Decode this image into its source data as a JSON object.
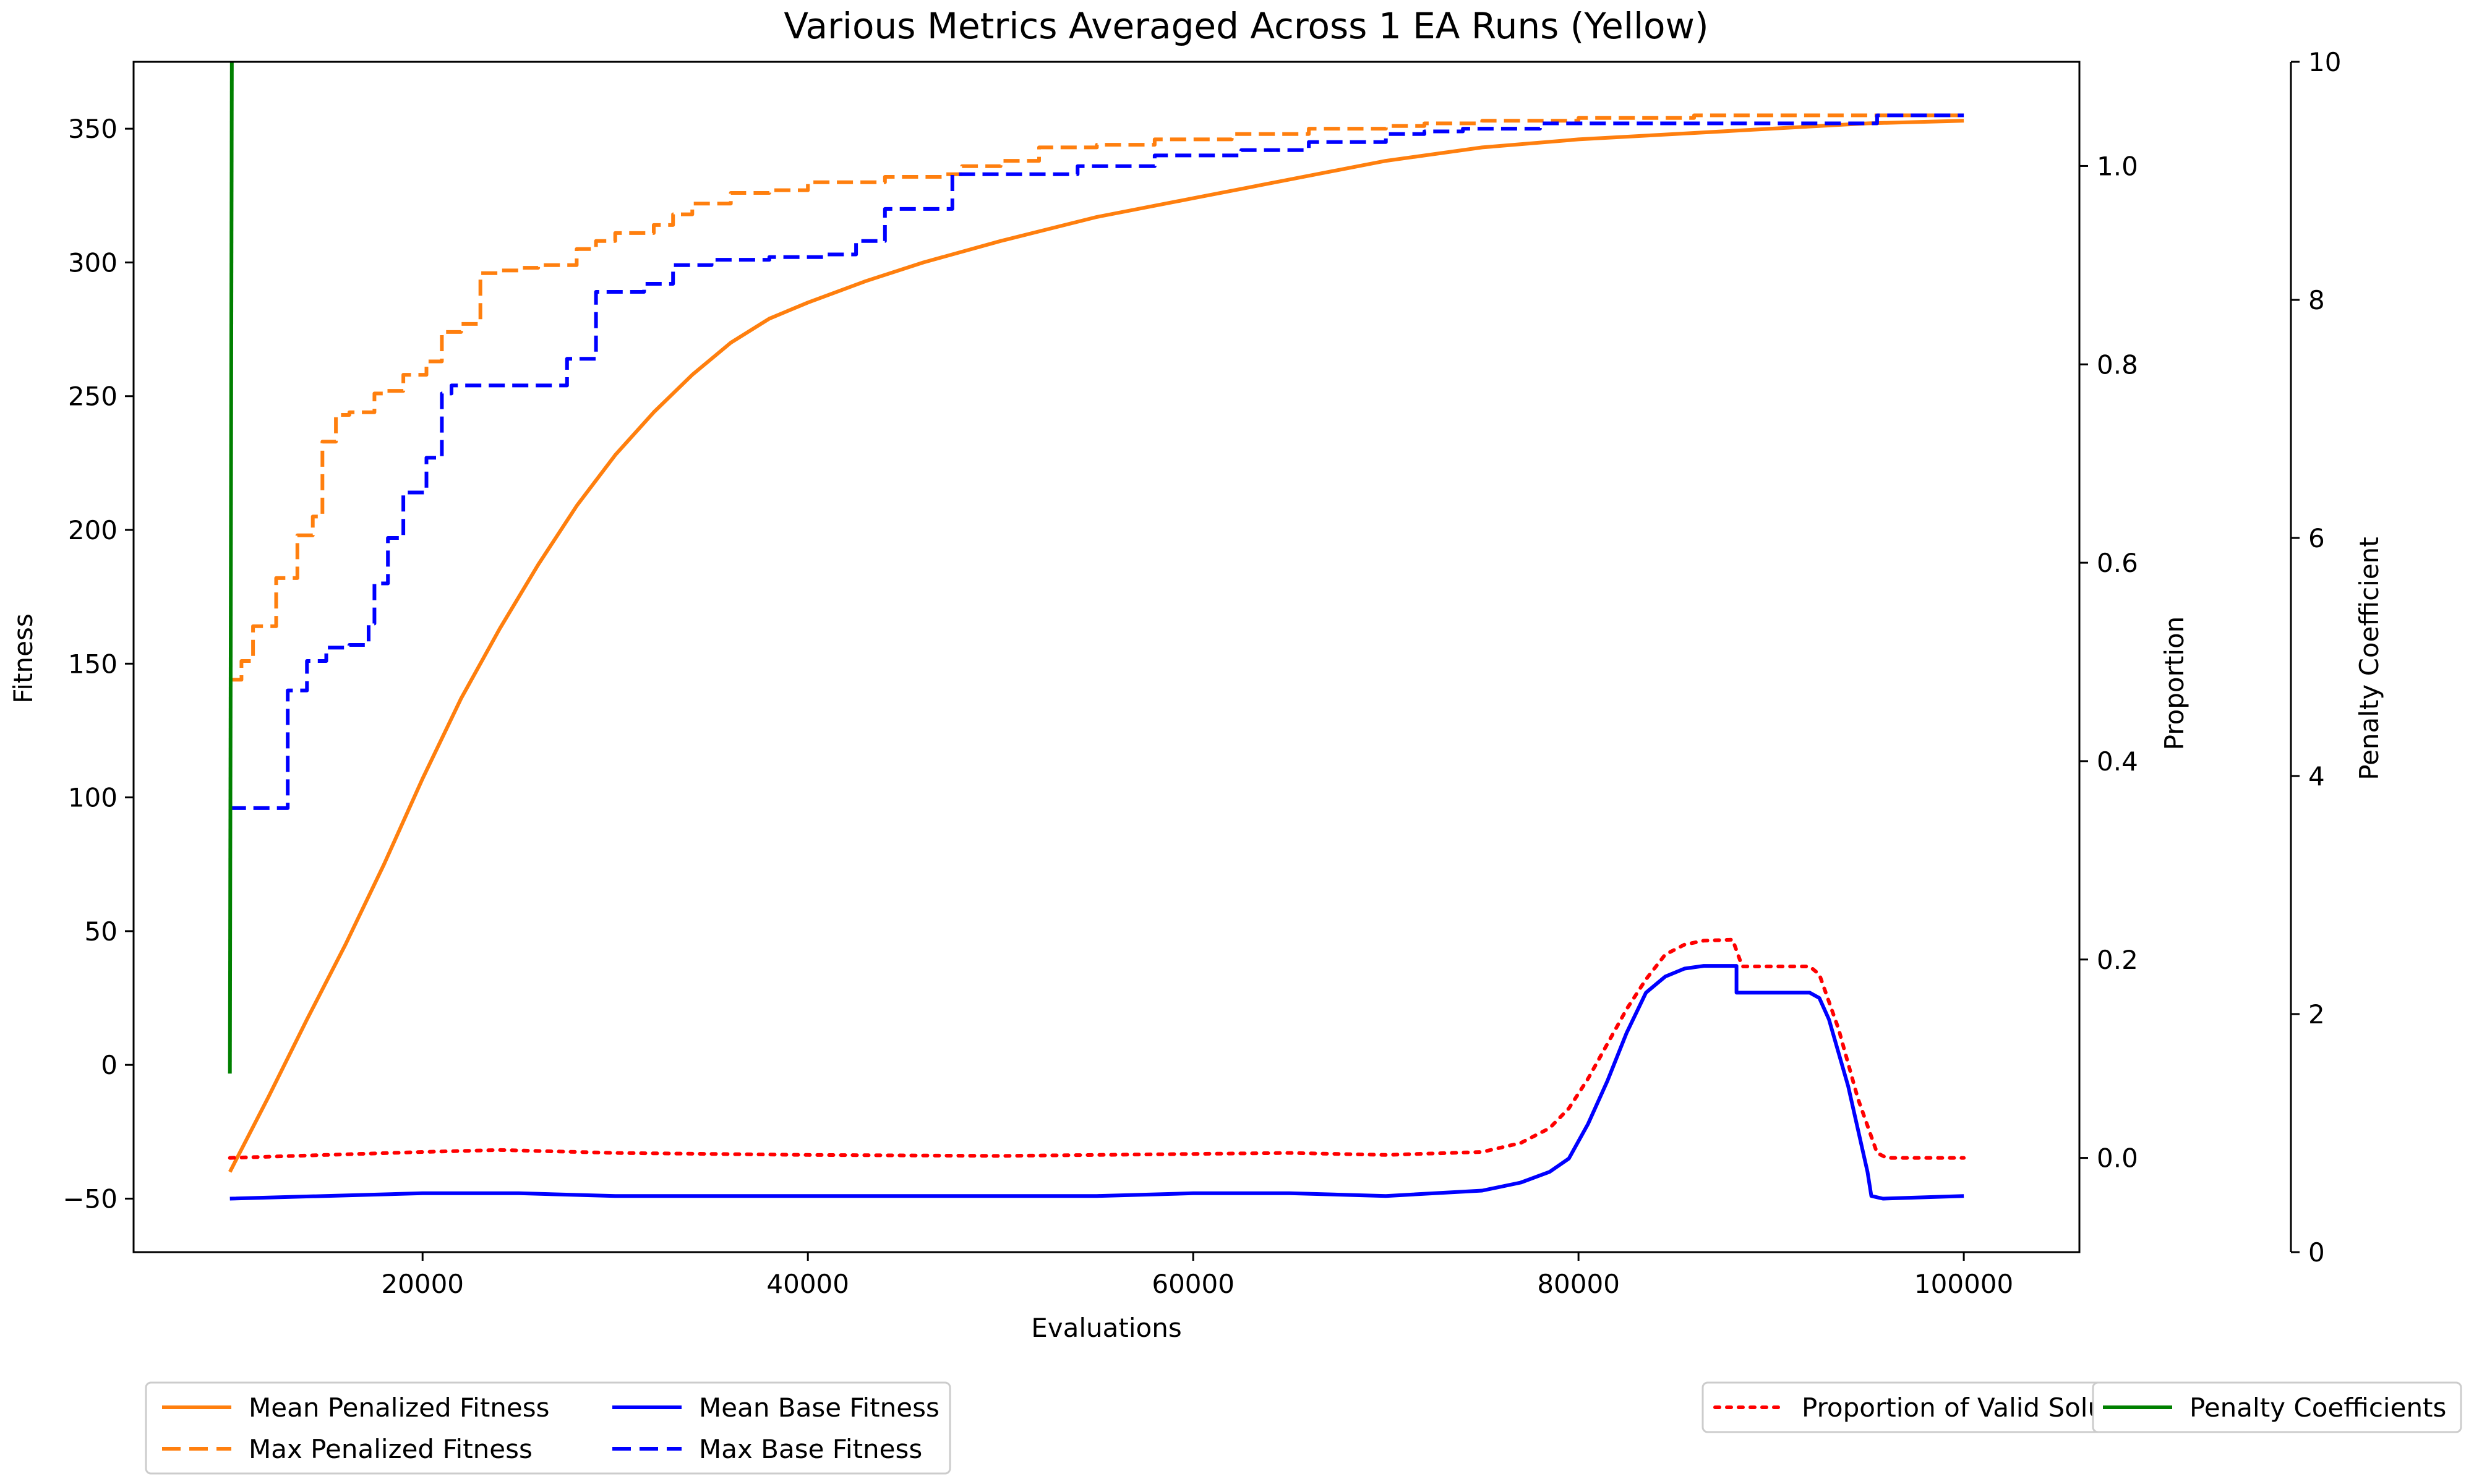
{
  "title": "Various Metrics Averaged Across 1 EA Runs (Yellow)",
  "colors": {
    "orange": "#ff7f0e",
    "blue": "#0000ff",
    "red": "#ff0000",
    "green": "#008000",
    "axis": "#000000"
  },
  "chart_data": {
    "type": "line",
    "xlabel": "Evaluations",
    "ylabel": "Fitness",
    "y2label": "Proportion",
    "y3label": "Penalty Coefficient",
    "xlim": [
      5000,
      106000
    ],
    "ylim": [
      -70,
      375
    ],
    "y2lim": [
      -0.095,
      1.105
    ],
    "y3lim": [
      0,
      10
    ],
    "xticks": [
      20000,
      40000,
      60000,
      80000,
      100000
    ],
    "yticks": [
      -50,
      0,
      50,
      100,
      150,
      200,
      250,
      300,
      350
    ],
    "y2ticks": [
      0.0,
      0.2,
      0.4,
      0.6,
      0.8,
      1.0
    ],
    "y3ticks": [
      0,
      2,
      4,
      6,
      8,
      10
    ],
    "series": [
      {
        "name": "Mean Penalized Fitness",
        "axis": "fitness",
        "color": "#ff7f0e",
        "dash": "solid",
        "x": [
          10000,
          12000,
          14000,
          16000,
          18000,
          20000,
          22000,
          24000,
          26000,
          28000,
          30000,
          32000,
          34000,
          36000,
          38000,
          40000,
          43000,
          46000,
          50000,
          55000,
          60000,
          65000,
          70000,
          75000,
          80000,
          85000,
          90000,
          95000,
          100000
        ],
        "y": [
          -40,
          -12,
          17,
          45,
          75,
          107,
          137,
          163,
          187,
          209,
          228,
          244,
          258,
          270,
          279,
          285,
          293,
          300,
          308,
          317,
          324,
          331,
          338,
          343,
          346,
          348,
          350,
          352,
          353
        ]
      },
      {
        "name": "Max Penalized Fitness",
        "axis": "fitness",
        "color": "#ff7f0e",
        "dash": "dashed",
        "x": [
          10000,
          10600,
          10600,
          11200,
          11200,
          12400,
          12400,
          13500,
          13500,
          14300,
          14300,
          14800,
          14800,
          15500,
          15500,
          16200,
          16200,
          17500,
          17500,
          18000,
          18000,
          19000,
          19000,
          20200,
          20200,
          21000,
          21000,
          22000,
          22000,
          23000,
          23000,
          24000,
          24000,
          25000,
          25000,
          26000,
          26000,
          28000,
          28000,
          29000,
          29000,
          30000,
          30000,
          32000,
          32000,
          33000,
          33000,
          34000,
          34000,
          36000,
          36000,
          38000,
          38000,
          40000,
          40000,
          44000,
          44000,
          47000,
          47000,
          48000,
          48000,
          50000,
          50000,
          52000,
          52000,
          55000,
          55000,
          58000,
          58000,
          62000,
          62000,
          66000,
          66000,
          70000,
          70000,
          72000,
          72000,
          75000,
          75000,
          80000,
          80000,
          86000,
          86000,
          100000
        ],
        "y": [
          144,
          144,
          151,
          151,
          164,
          164,
          182,
          182,
          198,
          198,
          205,
          205,
          233,
          233,
          243,
          243,
          244,
          244,
          251,
          251,
          252,
          252,
          258,
          258,
          263,
          263,
          274,
          274,
          277,
          277,
          296,
          296,
          297,
          297,
          298,
          298,
          299,
          299,
          305,
          305,
          308,
          308,
          311,
          311,
          314,
          314,
          318,
          318,
          322,
          322,
          326,
          326,
          327,
          327,
          330,
          330,
          332,
          332,
          333,
          333,
          336,
          336,
          338,
          338,
          343,
          343,
          344,
          344,
          346,
          346,
          348,
          348,
          350,
          350,
          351,
          351,
          352,
          352,
          353,
          353,
          354,
          354,
          355,
          355
        ]
      },
      {
        "name": "Mean Base Fitness",
        "axis": "fitness",
        "color": "#0000ff",
        "dash": "solid",
        "x": [
          10000,
          20000,
          25000,
          30000,
          40000,
          50000,
          55000,
          60000,
          65000,
          70000,
          75000,
          77000,
          78500,
          79500,
          80500,
          81500,
          82500,
          83500,
          84500,
          85500,
          86500,
          87500,
          88200,
          88200,
          92000,
          92500,
          93000,
          94000,
          95000,
          95200,
          95800,
          100000
        ],
        "y": [
          -50,
          -48,
          -48,
          -49,
          -49,
          -49,
          -49,
          -48,
          -48,
          -49,
          -47,
          -44,
          -40,
          -35,
          -22,
          -6,
          12,
          27,
          33,
          36,
          37,
          37,
          37,
          27,
          27,
          25,
          17,
          -8,
          -40,
          -49,
          -50,
          -49
        ]
      },
      {
        "name": "Max Base Fitness",
        "axis": "fitness",
        "color": "#0000ff",
        "dash": "dashed",
        "x": [
          10000,
          13000,
          13000,
          14000,
          14000,
          15000,
          15000,
          16200,
          16200,
          17200,
          17200,
          17500,
          17500,
          18200,
          18200,
          19000,
          19000,
          20200,
          20200,
          21000,
          21000,
          21500,
          21500,
          23000,
          23000,
          27500,
          27500,
          29000,
          29000,
          31500,
          31500,
          33000,
          33000,
          35000,
          35000,
          38000,
          38000,
          41000,
          41000,
          42500,
          42500,
          44000,
          44000,
          47500,
          47500,
          49500,
          49500,
          54000,
          54000,
          58000,
          58000,
          62500,
          62500,
          66000,
          66000,
          70000,
          70000,
          72000,
          72000,
          74000,
          74000,
          78000,
          78000,
          95500,
          95500,
          100000
        ],
        "y": [
          96,
          96,
          140,
          140,
          151,
          151,
          156,
          156,
          157,
          157,
          165,
          165,
          180,
          180,
          197,
          197,
          214,
          214,
          227,
          227,
          251,
          251,
          254,
          254,
          254,
          254,
          264,
          264,
          289,
          289,
          292,
          292,
          299,
          299,
          301,
          301,
          302,
          302,
          303,
          303,
          308,
          308,
          320,
          320,
          333,
          333,
          333,
          333,
          336,
          336,
          340,
          340,
          342,
          342,
          345,
          345,
          348,
          348,
          349,
          349,
          350,
          350,
          352,
          352,
          355,
          355
        ]
      },
      {
        "name": "Proportion of Valid Solutions",
        "axis": "proportion",
        "color": "#ff0000",
        "dash": "dotted",
        "x": [
          10000,
          15000,
          20000,
          24000,
          30000,
          40000,
          50000,
          60000,
          65000,
          70000,
          75000,
          77000,
          78500,
          79500,
          80500,
          81500,
          82500,
          83500,
          84500,
          85500,
          86500,
          88000,
          88500,
          92000,
          92500,
          93500,
          94500,
          95500,
          96000,
          100000
        ],
        "y": [
          0.0,
          0.003,
          0.006,
          0.008,
          0.005,
          0.003,
          0.002,
          0.004,
          0.005,
          0.003,
          0.006,
          0.015,
          0.03,
          0.05,
          0.08,
          0.115,
          0.15,
          0.18,
          0.205,
          0.215,
          0.219,
          0.22,
          0.193,
          0.193,
          0.185,
          0.13,
          0.06,
          0.005,
          0.0,
          0.0
        ]
      },
      {
        "name": "Penalty Coefficients",
        "axis": "penalty",
        "color": "#008000",
        "dash": "solid",
        "x": [
          10000,
          10100
        ],
        "y": [
          1.5,
          10.2
        ]
      }
    ]
  },
  "legend_left": [
    {
      "label": "Mean Penalized Fitness",
      "color": "#ff7f0e",
      "dash": "solid"
    },
    {
      "label": "Max Penalized Fitness",
      "color": "#ff7f0e",
      "dash": "dashed"
    },
    {
      "label": "Mean Base Fitness",
      "color": "#0000ff",
      "dash": "solid"
    },
    {
      "label": "Max Base Fitness",
      "color": "#0000ff",
      "dash": "dashed"
    }
  ],
  "legend_right": [
    {
      "label": "Proportion of Valid Solutions",
      "color": "#ff0000",
      "dash": "dotted"
    },
    {
      "label": "Penalty Coefficients",
      "color": "#008000",
      "dash": "solid"
    }
  ]
}
